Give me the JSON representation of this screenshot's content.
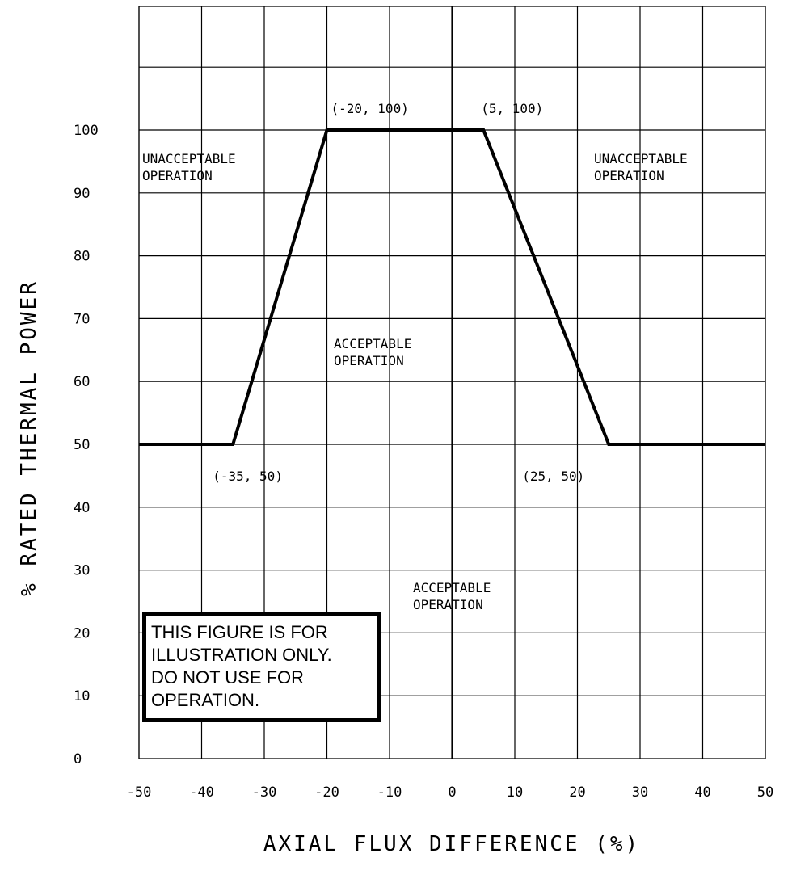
{
  "chart_data": {
    "type": "line",
    "title": "",
    "xlabel": "AXIAL FLUX DIFFERENCE (%)",
    "ylabel": "% RATED THERMAL POWER",
    "xlim": [
      -50,
      50
    ],
    "ylim": [
      0,
      100
    ],
    "x_ticks": [
      "-50",
      "-40",
      "-30",
      "-20",
      "-10",
      "0",
      "10",
      "20",
      "30",
      "40",
      "50"
    ],
    "y_ticks": [
      "0",
      "10",
      "20",
      "30",
      "40",
      "50",
      "60",
      "70",
      "80",
      "90",
      "100"
    ],
    "grid": true,
    "series": [
      {
        "x": [
          -50,
          -35,
          -20,
          5,
          25,
          50
        ],
        "y": [
          50,
          50,
          100,
          100,
          50,
          50
        ]
      }
    ],
    "point_labels": [
      {
        "text": "(-35, 50)",
        "x": -35,
        "y": 50
      },
      {
        "text": "(-20, 100)",
        "x": -20,
        "y": 100
      },
      {
        "text": "(5, 100)",
        "x": 5,
        "y": 100
      },
      {
        "text": "(25, 50)",
        "x": 25,
        "y": 50
      }
    ],
    "region_labels": [
      {
        "line1": "UNACCEPTABLE",
        "line2": "OPERATION"
      },
      {
        "line1": "UNACCEPTABLE",
        "line2": "OPERATION"
      },
      {
        "line1": "ACCEPTABLE",
        "line2": "OPERATION"
      },
      {
        "line1": "ACCEPTABLE",
        "line2": "OPERATION"
      }
    ],
    "notice": [
      "THIS FIGURE IS FOR",
      "ILLUSTRATION ONLY.",
      "DO NOT USE FOR",
      "OPERATION."
    ]
  }
}
